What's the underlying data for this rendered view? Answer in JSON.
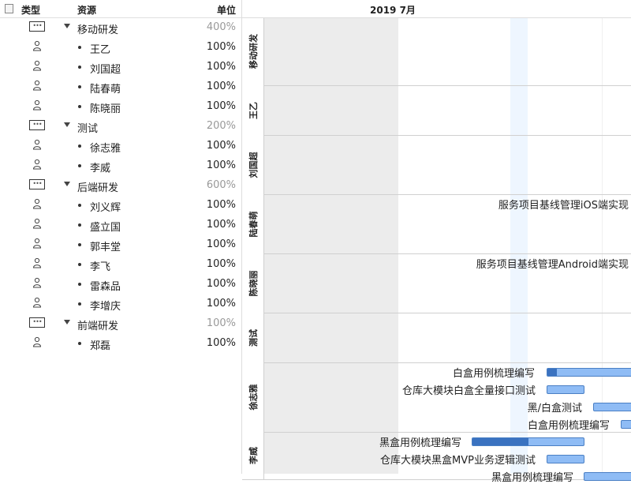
{
  "header": {
    "type_label": "类型",
    "resource_label": "资源",
    "unit_label": "单位"
  },
  "resources": [
    {
      "kind": "group",
      "name": "移动研发",
      "unit": "400%"
    },
    {
      "kind": "person",
      "name": "王乙",
      "unit": "100%"
    },
    {
      "kind": "person",
      "name": "刘国超",
      "unit": "100%"
    },
    {
      "kind": "person",
      "name": "陆春萌",
      "unit": "100%"
    },
    {
      "kind": "person",
      "name": "陈晓丽",
      "unit": "100%"
    },
    {
      "kind": "group",
      "name": "测试",
      "unit": "200%"
    },
    {
      "kind": "person",
      "name": "徐志雅",
      "unit": "100%"
    },
    {
      "kind": "person",
      "name": "李威",
      "unit": "100%"
    },
    {
      "kind": "group",
      "name": "后端研发",
      "unit": "600%"
    },
    {
      "kind": "person",
      "name": "刘义辉",
      "unit": "100%"
    },
    {
      "kind": "person",
      "name": "盛立国",
      "unit": "100%"
    },
    {
      "kind": "person",
      "name": "郭丰堂",
      "unit": "100%"
    },
    {
      "kind": "person",
      "name": "李飞",
      "unit": "100%"
    },
    {
      "kind": "person",
      "name": "雷森品",
      "unit": "100%"
    },
    {
      "kind": "person",
      "name": "李增庆",
      "unit": "100%"
    },
    {
      "kind": "group",
      "name": "前端研发",
      "unit": "100%"
    },
    {
      "kind": "person",
      "name": "郑磊",
      "unit": "100%"
    }
  ],
  "gantt": {
    "month_label": "2019 7月",
    "lanes": [
      {
        "name": "移动研发",
        "tasks": []
      },
      {
        "name": "王乙",
        "tasks": []
      },
      {
        "name": "刘国超",
        "tasks": []
      },
      {
        "name": "陆春萌",
        "tasks": [
          {
            "label": "服务项目基线管理iOS端实现",
            "progress": null
          }
        ]
      },
      {
        "name": "陈晓丽",
        "tasks": [
          {
            "label": "服务项目基线管理Android端实现",
            "progress": null
          }
        ]
      },
      {
        "name": "测试",
        "tasks": []
      },
      {
        "name": "徐志雅",
        "tasks": [
          {
            "label": "白盒用例梳理编写",
            "progress": 0.1
          },
          {
            "label": "仓库大模块白盒全量接口测试",
            "progress": 0
          },
          {
            "label": "黑/白盒测试",
            "progress": 0
          },
          {
            "label": "白盒用例梳理编写",
            "progress": 0
          }
        ]
      },
      {
        "name": "李威",
        "tasks": [
          {
            "label": "黑盒用例梳理编写",
            "progress": 0.5
          },
          {
            "label": "仓库大模块黑盒MVP业务逻辑测试",
            "progress": 0
          },
          {
            "label": "黑盒用例梳理编写",
            "progress": 0
          }
        ]
      }
    ]
  }
}
